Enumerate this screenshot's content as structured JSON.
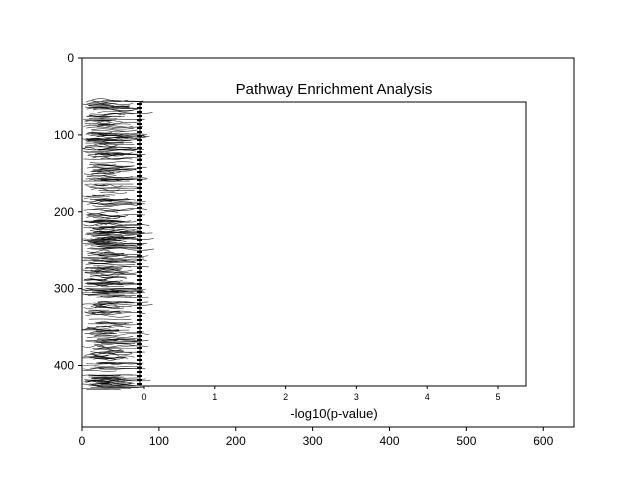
{
  "chart_data": [
    {
      "type": "image",
      "x_ticks": [
        0,
        100,
        200,
        300,
        400,
        500,
        600
      ],
      "y_ticks": [
        0,
        100,
        200,
        300,
        400
      ],
      "xlim": [
        0,
        640
      ],
      "ylim": [
        480,
        0
      ],
      "y_inverted": true,
      "grid": false
    },
    {
      "type": "bar",
      "orientation": "horizontal",
      "title": "Pathway Enrichment Analysis",
      "xlabel": "-log10(p-value)",
      "ylabel": "",
      "x_ticks": [
        0,
        1,
        2,
        3,
        4,
        5
      ],
      "xlim": [
        0,
        5.4
      ],
      "categories": [],
      "values": [],
      "note": "",
      "grid": false
    }
  ]
}
